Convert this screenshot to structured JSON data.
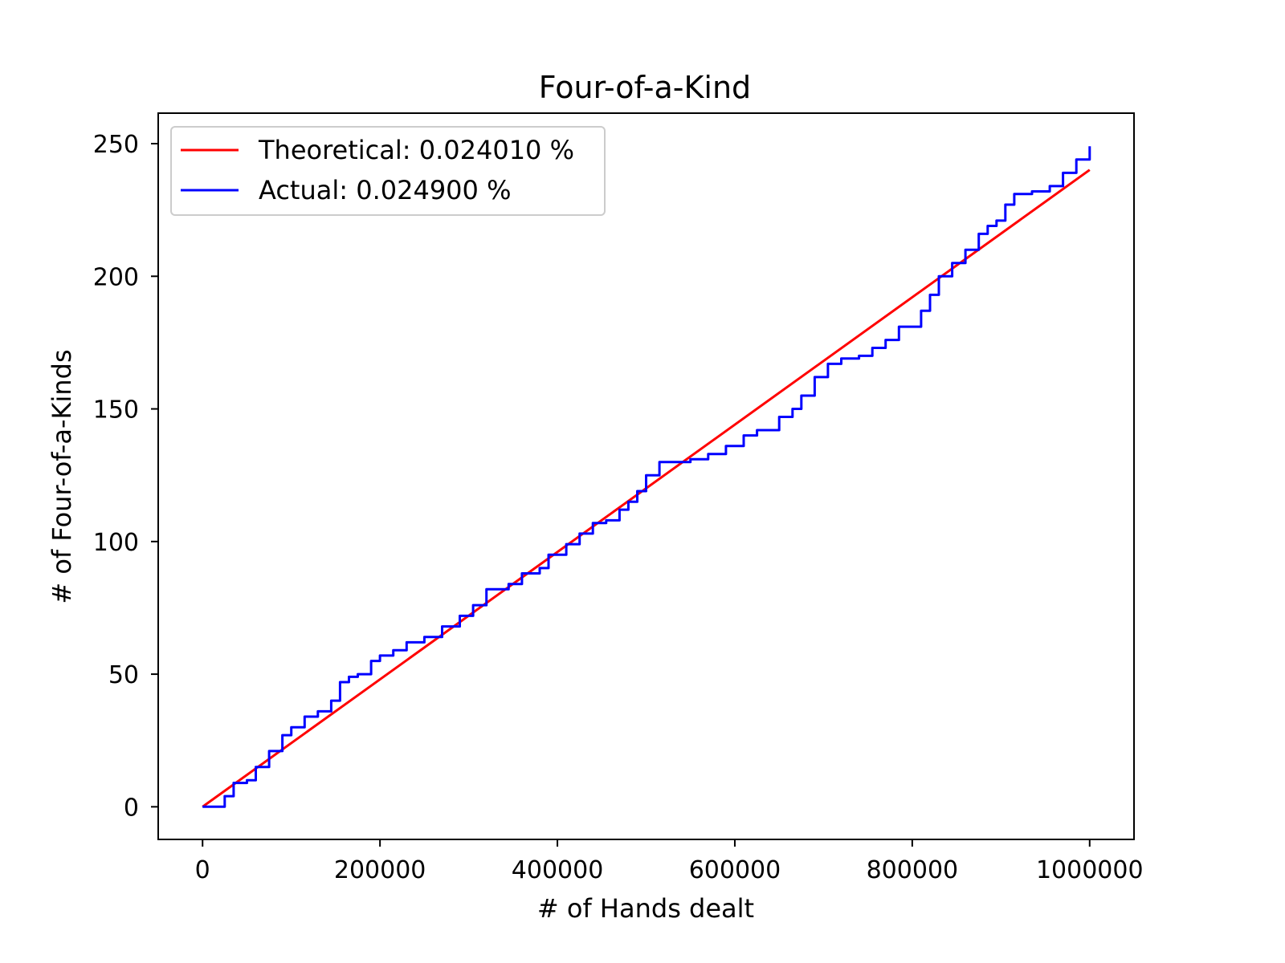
{
  "chart_data": {
    "type": "line",
    "title": "Four-of-a-Kind",
    "xlabel": "# of Hands dealt",
    "ylabel": "# of Four-of-a-Kinds",
    "xlim": [
      -50000,
      1050000
    ],
    "ylim": [
      -12.3,
      261.5
    ],
    "xticks": [
      0,
      200000,
      400000,
      600000,
      800000,
      1000000
    ],
    "xtick_labels": [
      "0",
      "200000",
      "400000",
      "600000",
      "800000",
      "1000000"
    ],
    "yticks": [
      0,
      50,
      100,
      150,
      200,
      250
    ],
    "ytick_labels": [
      "0",
      "50",
      "100",
      "150",
      "200",
      "250"
    ],
    "grid": false,
    "legend_position": "top-left",
    "series": [
      {
        "name": "Theoretical: 0.024010 %",
        "color": "#ff0000",
        "x": [
          0,
          1000000
        ],
        "y": [
          0,
          240.1
        ]
      },
      {
        "name": "Actual: 0.024900 %",
        "color": "#0000ff",
        "x": [
          0,
          15000,
          25000,
          35000,
          50000,
          60000,
          75000,
          90000,
          100000,
          115000,
          130000,
          145000,
          155000,
          165000,
          175000,
          190000,
          200000,
          215000,
          230000,
          250000,
          270000,
          290000,
          305000,
          320000,
          345000,
          360000,
          380000,
          390000,
          410000,
          425000,
          440000,
          455000,
          470000,
          480000,
          490000,
          500000,
          515000,
          530000,
          550000,
          570000,
          590000,
          610000,
          625000,
          650000,
          665000,
          675000,
          690000,
          705000,
          720000,
          740000,
          755000,
          770000,
          785000,
          795000,
          810000,
          820000,
          830000,
          845000,
          860000,
          875000,
          885000,
          895000,
          905000,
          915000,
          935000,
          955000,
          970000,
          985000,
          1000000
        ],
        "y": [
          0,
          0,
          4,
          9,
          10,
          15,
          21,
          27,
          30,
          34,
          36,
          40,
          47,
          49,
          50,
          55,
          57,
          59,
          62,
          64,
          68,
          72,
          76,
          82,
          84,
          88,
          90,
          95,
          99,
          103,
          107,
          108,
          112,
          115,
          119,
          125,
          130,
          130,
          131,
          133,
          136,
          140,
          142,
          147,
          150,
          155,
          162,
          167,
          169,
          170,
          173,
          176,
          181,
          181,
          187,
          193,
          200,
          205,
          210,
          216,
          219,
          221,
          227,
          231,
          232,
          234,
          239,
          244,
          249
        ]
      }
    ]
  }
}
